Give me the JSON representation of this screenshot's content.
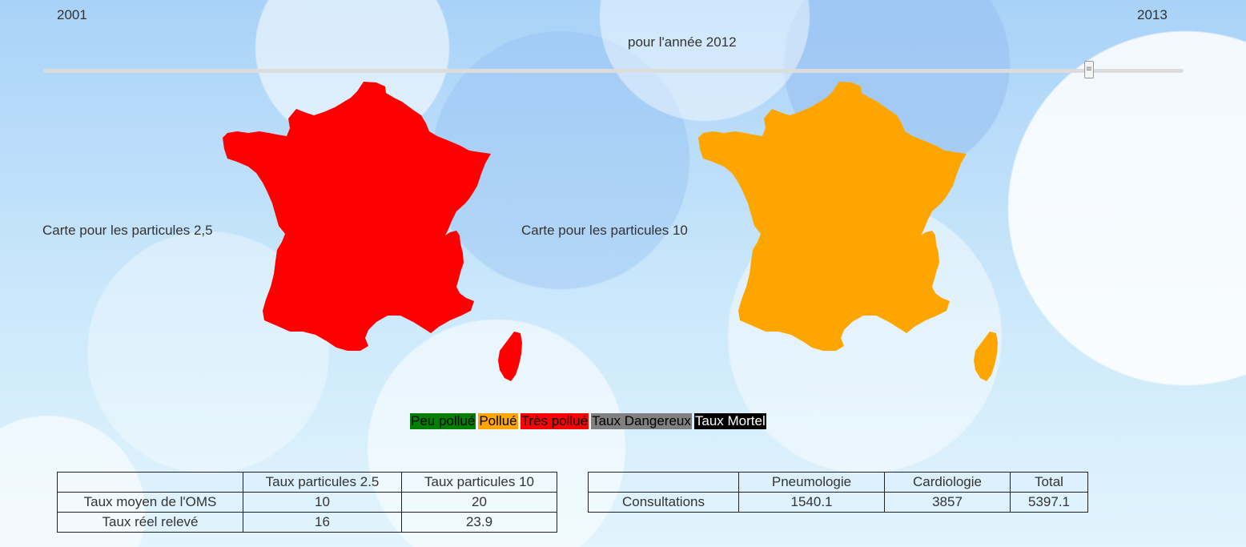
{
  "slider": {
    "min_label": "2001",
    "max_label": "2013",
    "caption": "pour l'année 2012",
    "handle_glyph": "≡",
    "value_fraction": 0.917
  },
  "maps": [
    {
      "title": "Carte pour les particules 2,5",
      "fill": "#ff0000"
    },
    {
      "title": "Carte pour les particules 10",
      "fill": "#ffa500"
    }
  ],
  "legend": [
    {
      "label": "Peu pollué",
      "bg": "#008000",
      "fg": "#000000"
    },
    {
      "label": "Pollué",
      "bg": "#ffa500",
      "fg": "#000000"
    },
    {
      "label": "Très pollué",
      "bg": "#ff0000",
      "fg": "#000000"
    },
    {
      "label": "Taux Dangereux",
      "bg": "#808080",
      "fg": "#000000"
    },
    {
      "label": "Taux Mortel",
      "bg": "#000000",
      "fg": "#ffffff"
    }
  ],
  "particles_table": {
    "headers": [
      "",
      "Taux particules 2.5",
      "Taux particules 10"
    ],
    "rows": [
      [
        "Taux moyen de l'OMS",
        "10",
        "20"
      ],
      [
        "Taux réel relevé",
        "16",
        "23.9"
      ]
    ]
  },
  "consultations_table": {
    "headers": [
      "",
      "Pneumologie",
      "Cardiologie",
      "Total"
    ],
    "rows": [
      [
        "Consultations",
        "1540.1",
        "3857",
        "5397.1"
      ]
    ]
  }
}
